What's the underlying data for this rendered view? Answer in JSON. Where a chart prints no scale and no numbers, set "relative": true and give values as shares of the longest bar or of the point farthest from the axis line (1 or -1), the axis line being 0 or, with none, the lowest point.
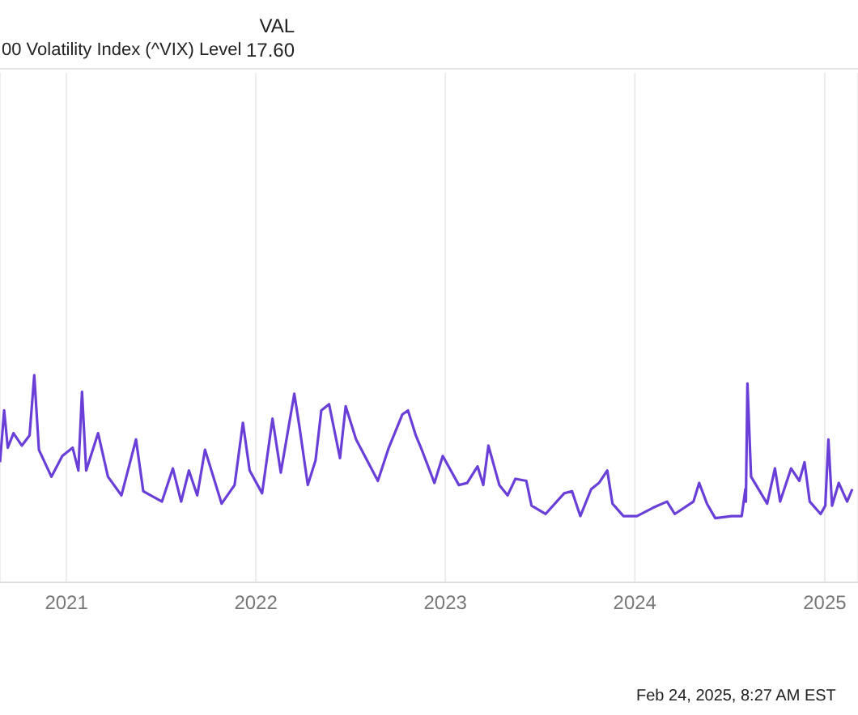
{
  "chart_data": {
    "type": "line",
    "relative": true,
    "title": "00 Volatility Index (^VIX) Level",
    "annotations": [
      "VAL",
      "17.60",
      "Feb 24, 2025, 8:27 AM EST"
    ],
    "xlim": [
      "2020-08-26",
      "2025-03-06"
    ],
    "xticks": [
      {
        "value": "2021-01-01",
        "label": "2021"
      },
      {
        "value": "2022-01-01",
        "label": "2022"
      },
      {
        "value": "2023-01-01",
        "label": "2023"
      },
      {
        "value": "2024-01-01",
        "label": "2024"
      },
      {
        "value": "2025-01-01",
        "label": "2025"
      }
    ],
    "grid": "x",
    "legend": false,
    "marker": "none",
    "line_style": "solid",
    "x": [
      "2020-08-26",
      "2020-09-03",
      "2020-09-10",
      "2020-09-21",
      "2020-10-07",
      "2020-10-22",
      "2020-10-31",
      "2020-11-09",
      "2020-12-03",
      "2020-12-24",
      "2021-01-13",
      "2021-01-24",
      "2021-01-31",
      "2021-02-08",
      "2021-03-03",
      "2021-03-22",
      "2021-04-17",
      "2021-05-15",
      "2021-05-29",
      "2021-07-04",
      "2021-07-25",
      "2021-08-10",
      "2021-08-25",
      "2021-09-10",
      "2021-09-25",
      "2021-10-27",
      "2021-11-21",
      "2021-12-07",
      "2021-12-20",
      "2022-01-13",
      "2022-02-02",
      "2022-02-18",
      "2022-03-16",
      "2022-03-26",
      "2022-04-11",
      "2022-04-26",
      "2022-05-07",
      "2022-05-22",
      "2022-06-12",
      "2022-06-23",
      "2022-07-13",
      "2022-08-24",
      "2022-09-14",
      "2022-10-10",
      "2022-10-21",
      "2022-11-05",
      "2022-11-15",
      "2022-12-11",
      "2022-12-27",
      "2023-01-27",
      "2023-02-12",
      "2023-03-04",
      "2023-03-15",
      "2023-03-25",
      "2023-04-15",
      "2023-05-01",
      "2023-05-16",
      "2023-06-06",
      "2023-06-16",
      "2023-07-13",
      "2023-08-18",
      "2023-09-02",
      "2023-09-18",
      "2023-10-09",
      "2023-10-24",
      "2023-11-09",
      "2023-11-19",
      "2023-12-10",
      "2024-01-05",
      "2024-02-05",
      "2024-03-03",
      "2024-03-18",
      "2024-04-23",
      "2024-05-04",
      "2024-05-19",
      "2024-06-04",
      "2024-07-05",
      "2024-07-25",
      "2024-08-01",
      "2024-08-02",
      "2024-08-05",
      "2024-08-12",
      "2024-09-12",
      "2024-09-27",
      "2024-10-07",
      "2024-10-28",
      "2024-11-13",
      "2024-11-23",
      "2024-12-03",
      "2024-12-24",
      "2025-01-02",
      "2025-01-08",
      "2025-01-15",
      "2025-01-28",
      "2025-02-13",
      "2025-02-23"
    ],
    "series": [
      {
        "color": "#6a3fd8",
        "values": [
          0.58,
          0.83,
          0.65,
          0.72,
          0.66,
          0.71,
          1.0,
          0.64,
          0.51,
          0.61,
          0.65,
          0.54,
          0.92,
          0.54,
          0.72,
          0.51,
          0.42,
          0.69,
          0.44,
          0.39,
          0.55,
          0.39,
          0.54,
          0.42,
          0.64,
          0.38,
          0.47,
          0.77,
          0.54,
          0.43,
          0.79,
          0.53,
          0.91,
          0.75,
          0.47,
          0.59,
          0.83,
          0.86,
          0.6,
          0.85,
          0.69,
          0.49,
          0.65,
          0.81,
          0.83,
          0.71,
          0.65,
          0.48,
          0.61,
          0.47,
          0.48,
          0.56,
          0.47,
          0.66,
          0.47,
          0.42,
          0.5,
          0.49,
          0.37,
          0.33,
          0.43,
          0.44,
          0.32,
          0.45,
          0.48,
          0.54,
          0.38,
          0.32,
          0.32,
          0.36,
          0.39,
          0.33,
          0.39,
          0.48,
          0.38,
          0.31,
          0.32,
          0.32,
          0.45,
          0.39,
          0.96,
          0.51,
          0.38,
          0.55,
          0.39,
          0.55,
          0.49,
          0.58,
          0.39,
          0.33,
          0.37,
          0.69,
          0.37,
          0.48,
          0.39,
          0.45
        ]
      }
    ]
  }
}
